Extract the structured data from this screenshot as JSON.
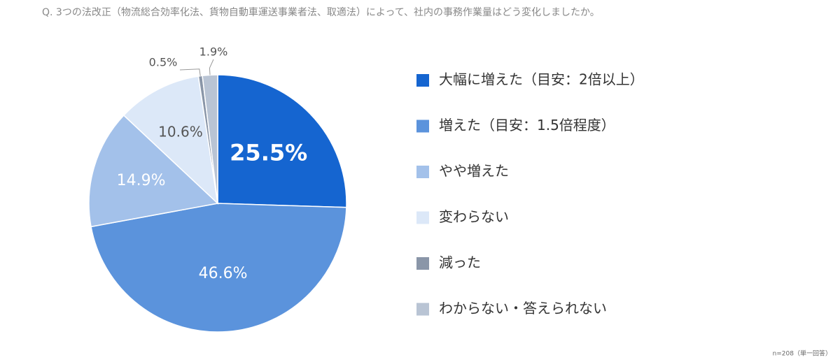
{
  "chart_data": {
    "type": "pie",
    "title": "Q. 3つの法改正（物流総合効率化法、貨物自動車運送事業者法、取適法）によって、社内の事務作業量はどう変化しましたか。",
    "note": "n=208（単一回答）",
    "categories": [
      "大幅に増えた（目安：2倍以上）",
      "増えた（目安：1.5倍程度）",
      "やや増えた",
      "変わらない",
      "減った",
      "わからない・答えられない"
    ],
    "values": [
      25.5,
      46.6,
      14.9,
      10.6,
      0.5,
      1.9
    ],
    "value_labels": [
      "25.5%",
      "46.6%",
      "14.9%",
      "10.6%",
      "0.5%",
      "1.9%"
    ],
    "colors": [
      "#1565d0",
      "#5b93dc",
      "#a3c1ea",
      "#dce8f8",
      "#8a96a8",
      "#b9c4d4"
    ]
  }
}
